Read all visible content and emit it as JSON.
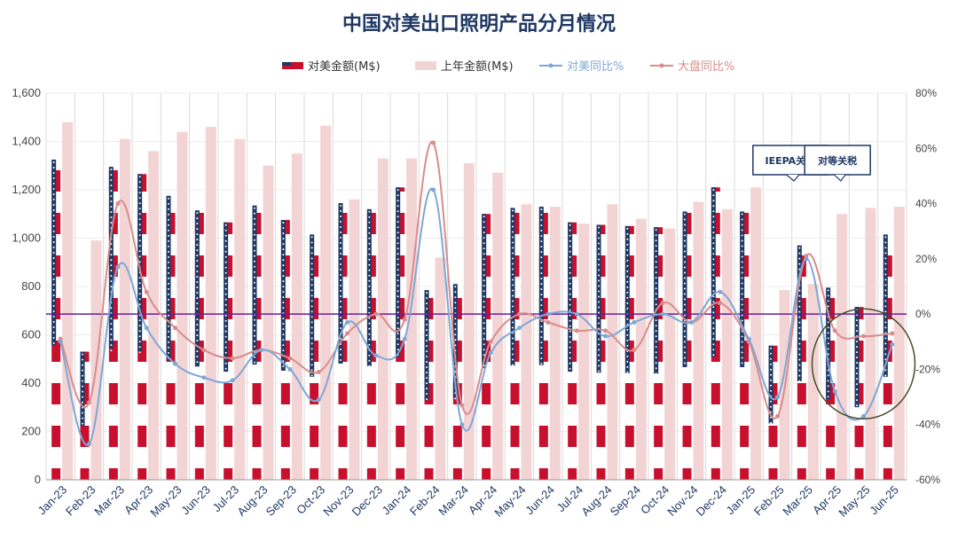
{
  "chart_data": {
    "type": "bar",
    "title": "中国对美出口照明产品分月情况",
    "categories": [
      "Jan-23",
      "Feb-23",
      "Mar-23",
      "Apr-23",
      "May-23",
      "Jun-23",
      "Jul-23",
      "Aug-23",
      "Sep-23",
      "Oct-23",
      "Nov-23",
      "Dec-23",
      "Jan-24",
      "Feb-24",
      "Mar-24",
      "Apr-24",
      "May-24",
      "Jun-24",
      "Jul-24",
      "Aug-24",
      "Sep-24",
      "Oct-24",
      "Nov-24",
      "Dec-24",
      "Jan-25",
      "Feb-25",
      "Mar-25",
      "Apr-25",
      "May-25",
      "Jun-25"
    ],
    "y_left": {
      "min": 0,
      "max": 1600,
      "step": 200
    },
    "y_right": {
      "min": -60,
      "max": 80,
      "step": 20,
      "unit": "%"
    },
    "series": [
      {
        "name": "对美金额(M$)",
        "kind": "bar",
        "axis": "left",
        "color": "#c8102e",
        "color2": "#1f3864",
        "values": [
          1325,
          530,
          1295,
          1265,
          1175,
          1115,
          1065,
          1135,
          1075,
          1015,
          1145,
          1120,
          1210,
          785,
          810,
          1100,
          1125,
          1130,
          1065,
          1055,
          1050,
          1045,
          1110,
          1210,
          1110,
          555,
          970,
          795,
          715,
          1015
        ]
      },
      {
        "name": "上年金额(M$)",
        "kind": "bar",
        "axis": "left",
        "color": "#f2d4d4",
        "values": [
          1480,
          990,
          1410,
          1360,
          1440,
          1460,
          1410,
          1300,
          1350,
          1465,
          1160,
          1330,
          1330,
          920,
          1310,
          1270,
          1140,
          1130,
          1060,
          1140,
          1080,
          1040,
          1150,
          1120,
          1210,
          785,
          810,
          1100,
          1125,
          1130
        ]
      },
      {
        "name": "对美同比%",
        "kind": "line",
        "axis": "right",
        "color": "#7fa7d6",
        "values": [
          -10,
          -47,
          17,
          -5,
          -18,
          -23,
          -24,
          -13,
          -20,
          -31,
          -3,
          -15,
          -9,
          45,
          -40,
          -14,
          -5,
          0,
          0,
          -8,
          -3,
          0,
          -3,
          8,
          -9,
          -30,
          20,
          -28,
          -37,
          -11
        ]
      },
      {
        "name": "大盘同比%",
        "kind": "line",
        "axis": "right",
        "color": "#d98c8c",
        "values": [
          -9,
          -32,
          40,
          8,
          -5,
          -13,
          -16,
          -13,
          -16,
          -21,
          -7,
          0,
          -2,
          62,
          -33,
          -10,
          0,
          -3,
          -6,
          -6,
          -13,
          4,
          -3,
          4,
          -10,
          -37,
          21,
          -6,
          -8,
          -7
        ]
      }
    ],
    "annotations": [
      {
        "text": "IEEPA关税",
        "anchor": "Mar-25"
      },
      {
        "text": "对等关税",
        "anchor": "Apr-25"
      }
    ],
    "reference_line": {
      "value": 0,
      "axis": "right",
      "color": "#6a1b9a"
    },
    "legend_position": "top"
  }
}
